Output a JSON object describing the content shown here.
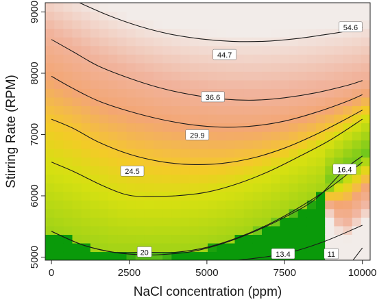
{
  "chart_data": {
    "type": "heatmap",
    "subtype": "contour",
    "title": "",
    "xlabel": "NaCl concentration (ppm)",
    "ylabel": "Stirring Rate (RPM)",
    "xlim": [
      -200,
      10250
    ],
    "ylim": [
      4950,
      9150
    ],
    "x_ticks": [
      0,
      2500,
      5000,
      7500,
      10000
    ],
    "y_ticks": [
      5000,
      6000,
      7000,
      8000,
      9000
    ],
    "grid": false,
    "colormap": {
      "stops": [
        {
          "value": 9,
          "color": "#0a9a0a"
        },
        {
          "value": 16,
          "color": "#6cc61c"
        },
        {
          "value": 24,
          "color": "#d6e011"
        },
        {
          "value": 29,
          "color": "#f4ca28"
        },
        {
          "value": 36,
          "color": "#f3a673"
        },
        {
          "value": 46,
          "color": "#f1b39c"
        },
        {
          "value": 56,
          "color": "#f2ece9"
        }
      ]
    },
    "contours": [
      {
        "level": 11,
        "label": "11",
        "label_position": {
          "x": 9000,
          "y": 5050
        },
        "points": [
          [
            9700,
            4950
          ],
          [
            10000,
            5150
          ]
        ]
      },
      {
        "level": 13.4,
        "label": "13.4",
        "label_position": {
          "x": 7450,
          "y": 5050
        },
        "points": [
          [
            6000,
            4950
          ],
          [
            7450,
            5050
          ],
          [
            8750,
            5250
          ],
          [
            10000,
            5520
          ]
        ]
      },
      {
        "level": 16.4,
        "label": "16.4",
        "label_position": {
          "x": 9430,
          "y": 6430
        },
        "points": [
          [
            0,
            5420
          ],
          [
            1000,
            5200
          ],
          [
            2000,
            5080
          ],
          [
            2800,
            5040
          ],
          [
            3500,
            5040
          ],
          [
            4500,
            5090
          ],
          [
            5500,
            5220
          ],
          [
            6500,
            5410
          ],
          [
            7500,
            5650
          ],
          [
            8500,
            5950
          ],
          [
            9430,
            6430
          ],
          [
            10000,
            6650
          ]
        ]
      },
      {
        "level": 20,
        "label": "20",
        "label_position": {
          "x": 2990,
          "y": 5080
        },
        "points": [
          [
            0,
            5420
          ],
          [
            1000,
            5200
          ],
          [
            2000,
            5080
          ],
          [
            2990,
            5080
          ],
          [
            4000,
            5080
          ],
          [
            5000,
            5160
          ],
          [
            6000,
            5320
          ],
          [
            7000,
            5540
          ],
          [
            8000,
            5820
          ],
          [
            9000,
            6150
          ],
          [
            10000,
            6550
          ]
        ]
      },
      {
        "level": 24.5,
        "label": "24.5",
        "label_position": {
          "x": 2600,
          "y": 6400
        },
        "points": [
          [
            0,
            6550
          ],
          [
            700,
            6400
          ],
          [
            1500,
            6200
          ],
          [
            2200,
            6050
          ],
          [
            2600,
            6000
          ],
          [
            3000,
            5990
          ],
          [
            4000,
            6000
          ],
          [
            5000,
            6060
          ],
          [
            6000,
            6200
          ],
          [
            7000,
            6400
          ],
          [
            8000,
            6650
          ],
          [
            9000,
            6920
          ],
          [
            10000,
            7250
          ]
        ]
      },
      {
        "level": 29.9,
        "label": "29.9",
        "label_position": {
          "x": 4690,
          "y": 6990
        },
        "points": [
          [
            0,
            7250
          ],
          [
            700,
            7100
          ],
          [
            1500,
            6880
          ],
          [
            2500,
            6680
          ],
          [
            3500,
            6560
          ],
          [
            4500,
            6510
          ],
          [
            5500,
            6530
          ],
          [
            6500,
            6620
          ],
          [
            7500,
            6780
          ],
          [
            8500,
            7000
          ],
          [
            9500,
            7260
          ],
          [
            10000,
            7400
          ]
        ]
      },
      {
        "level": 36.6,
        "label": "36.6",
        "label_position": {
          "x": 5190,
          "y": 7610
        },
        "points": [
          [
            0,
            7950
          ],
          [
            700,
            7750
          ],
          [
            1500,
            7550
          ],
          [
            2500,
            7380
          ],
          [
            3500,
            7250
          ],
          [
            4500,
            7160
          ],
          [
            5500,
            7120
          ],
          [
            6500,
            7140
          ],
          [
            7500,
            7220
          ],
          [
            8500,
            7360
          ],
          [
            9500,
            7540
          ],
          [
            10000,
            7650
          ]
        ]
      },
      {
        "level": 44.7,
        "label": "44.7",
        "label_position": {
          "x": 5570,
          "y": 8300
        },
        "points": [
          [
            0,
            8550
          ],
          [
            700,
            8350
          ],
          [
            1500,
            8120
          ],
          [
            2500,
            7920
          ],
          [
            3500,
            7760
          ],
          [
            4500,
            7650
          ],
          [
            5500,
            7580
          ],
          [
            6500,
            7560
          ],
          [
            7500,
            7600
          ],
          [
            8500,
            7680
          ],
          [
            9500,
            7800
          ],
          [
            10000,
            7880
          ]
        ]
      },
      {
        "level": 54.6,
        "label": "54.6",
        "label_position": {
          "x": 9620,
          "y": 8750
        },
        "points": [
          [
            900,
            9150
          ],
          [
            1800,
            8950
          ],
          [
            2800,
            8770
          ],
          [
            3800,
            8640
          ],
          [
            4800,
            8560
          ],
          [
            5800,
            8520
          ],
          [
            6800,
            8520
          ],
          [
            7800,
            8560
          ],
          [
            8800,
            8630
          ],
          [
            9620,
            8700
          ],
          [
            10000,
            8750
          ]
        ]
      }
    ]
  }
}
